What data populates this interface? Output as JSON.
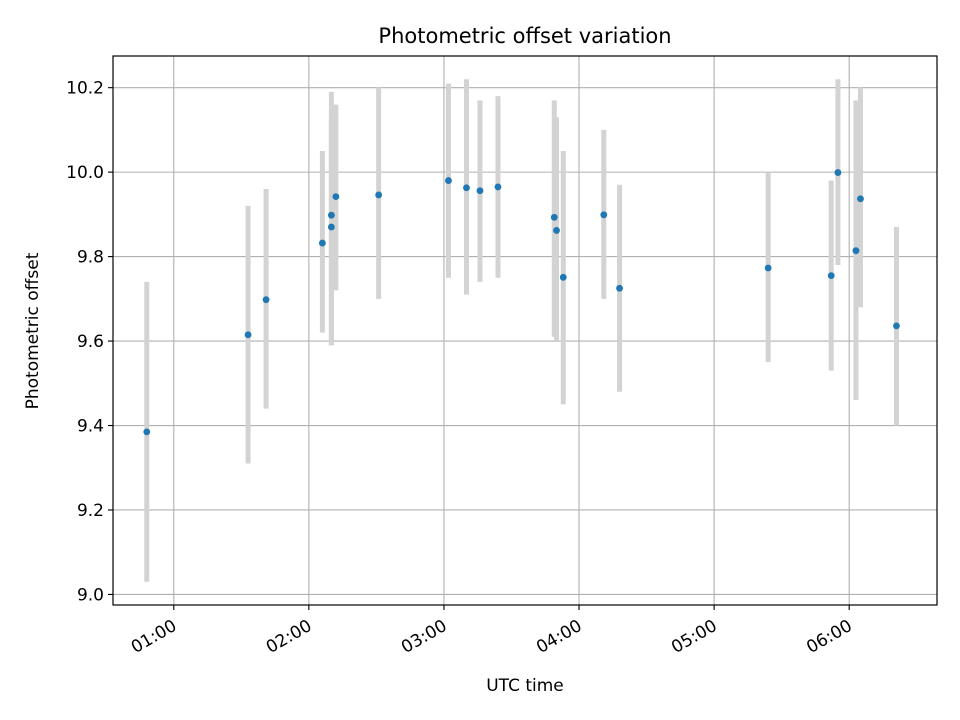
{
  "chart_data": {
    "type": "scatter",
    "title": "Photometric offset variation",
    "xlabel": "UTC time",
    "ylabel": "Photometric offset",
    "xlim": [
      "00:33",
      "06:39"
    ],
    "ylim": [
      8.975,
      10.275
    ],
    "grid": true,
    "x_ticks": [
      "01:00",
      "02:00",
      "03:00",
      "04:00",
      "05:00",
      "06:00"
    ],
    "y_ticks": [
      "9.0",
      "9.2",
      "9.4",
      "9.6",
      "9.8",
      "10.0",
      "10.2"
    ],
    "colors": {
      "point": "#1f77b4",
      "errorbar": "#d3d3d3",
      "grid": "#b0b0b0"
    },
    "points": [
      {
        "x": "00:48",
        "y": 9.385,
        "ylow": 9.03,
        "yhigh": 9.74
      },
      {
        "x": "01:33",
        "y": 9.615,
        "ylow": 9.31,
        "yhigh": 9.92
      },
      {
        "x": "01:41",
        "y": 9.698,
        "ylow": 9.44,
        "yhigh": 9.96
      },
      {
        "x": "02:06",
        "y": 9.832,
        "ylow": 9.62,
        "yhigh": 10.05
      },
      {
        "x": "02:10",
        "y": 9.898,
        "ylow": 9.59,
        "yhigh": 10.19
      },
      {
        "x": "02:10",
        "y": 9.87,
        "ylow": 9.59,
        "yhigh": 10.13
      },
      {
        "x": "02:12",
        "y": 9.942,
        "ylow": 9.72,
        "yhigh": 10.16
      },
      {
        "x": "02:31",
        "y": 9.946,
        "ylow": 9.7,
        "yhigh": 10.2
      },
      {
        "x": "03:02",
        "y": 9.98,
        "ylow": 9.75,
        "yhigh": 10.21
      },
      {
        "x": "03:10",
        "y": 9.963,
        "ylow": 9.71,
        "yhigh": 10.22
      },
      {
        "x": "03:16",
        "y": 9.956,
        "ylow": 9.74,
        "yhigh": 10.17
      },
      {
        "x": "03:24",
        "y": 9.965,
        "ylow": 9.75,
        "yhigh": 10.18
      },
      {
        "x": "03:49",
        "y": 9.893,
        "ylow": 9.61,
        "yhigh": 10.17
      },
      {
        "x": "03:50",
        "y": 9.862,
        "ylow": 9.6,
        "yhigh": 10.13
      },
      {
        "x": "03:53",
        "y": 9.751,
        "ylow": 9.45,
        "yhigh": 10.05
      },
      {
        "x": "04:11",
        "y": 9.899,
        "ylow": 9.7,
        "yhigh": 10.1
      },
      {
        "x": "04:18",
        "y": 9.725,
        "ylow": 9.48,
        "yhigh": 9.97
      },
      {
        "x": "05:24",
        "y": 9.773,
        "ylow": 9.55,
        "yhigh": 10.0
      },
      {
        "x": "05:52",
        "y": 9.755,
        "ylow": 9.53,
        "yhigh": 9.98
      },
      {
        "x": "05:55",
        "y": 9.999,
        "ylow": 9.78,
        "yhigh": 10.22
      },
      {
        "x": "06:03",
        "y": 9.814,
        "ylow": 9.46,
        "yhigh": 10.17
      },
      {
        "x": "06:05",
        "y": 9.937,
        "ylow": 9.68,
        "yhigh": 10.2
      },
      {
        "x": "06:21",
        "y": 9.636,
        "ylow": 9.4,
        "yhigh": 9.87
      }
    ]
  }
}
